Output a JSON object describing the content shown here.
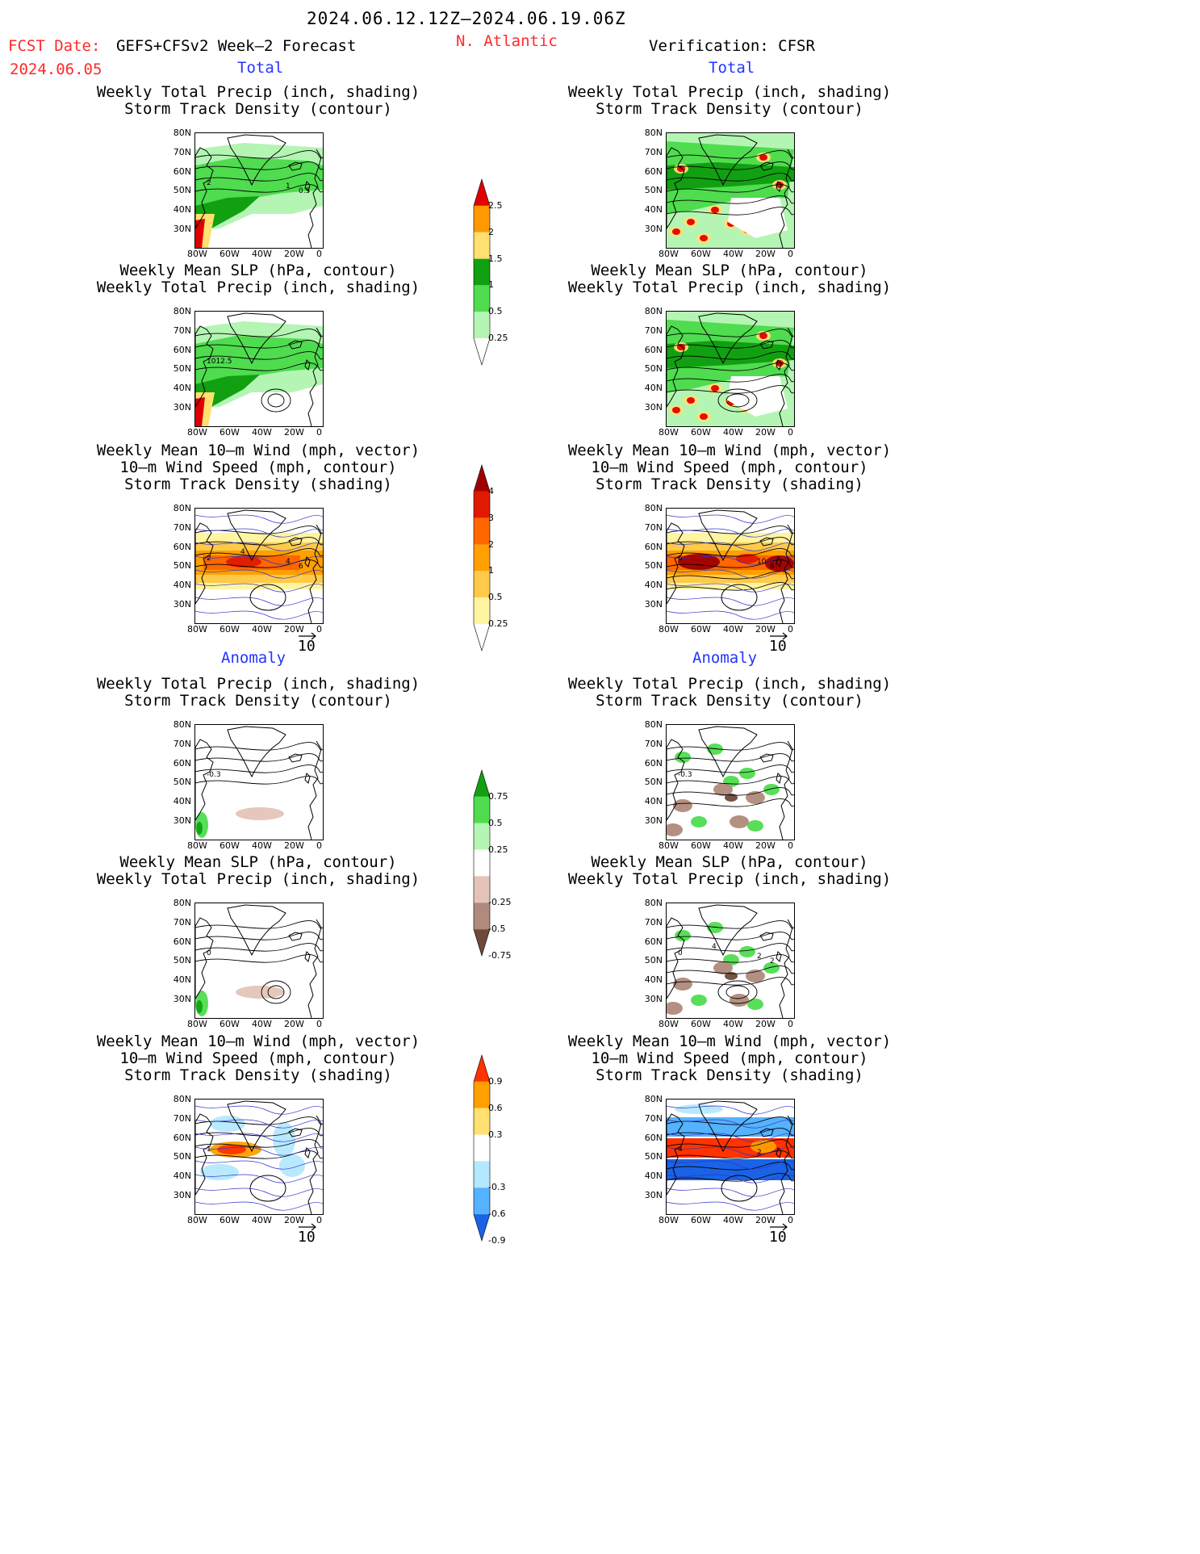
{
  "header": {
    "period": "2024.06.12.12Z–2024.06.19.06Z",
    "fcst_label": "FCST Date:",
    "fcst_model": "GEFS+CFSv2 Week–2 Forecast",
    "fcst_date": "2024.06.05",
    "region": "N. Atlantic",
    "verification": "Verification: CFSR"
  },
  "sections": {
    "total": "Total",
    "anomaly": "Anomaly"
  },
  "panel_titles": {
    "precip_track": [
      "Weekly Total Precip (inch, shading)",
      "Storm Track Density (contour)"
    ],
    "slp_precip": [
      "Weekly Mean SLP (hPa, contour)",
      "Weekly Total Precip (inch, shading)"
    ],
    "wind": [
      "Weekly Mean 10–m Wind (mph, vector)",
      "10–m Wind Speed (mph, contour)",
      "Storm Track Density (shading)"
    ]
  },
  "axes": {
    "lat": [
      "80N",
      "70N",
      "60N",
      "50N",
      "40N",
      "30N"
    ],
    "lon": [
      "80W",
      "60W",
      "40W",
      "20W",
      "0"
    ]
  },
  "vector_ref": "10",
  "contour_labels": {
    "fc_total_precip": [
      "2",
      "1",
      "0.5"
    ],
    "fc_total_slp": [
      "1012.5"
    ],
    "fc_total_wind": [
      "2",
      "4",
      "6",
      "4"
    ],
    "ob_total_wind": [
      "6",
      "10",
      "6"
    ],
    "fc_anom_precip": [
      "-0.3"
    ],
    "ob_anom_precip": [
      "-0.3"
    ],
    "fc_anom_slp": [
      "0"
    ],
    "ob_anom_slp": [
      "0",
      "2",
      "2",
      "4"
    ],
    "fc_anom_wind": [
      "1"
    ],
    "ob_anom_wind": [
      "4",
      "2"
    ]
  },
  "colorbars": {
    "precip_total": [
      "2.5",
      "2",
      "1.5",
      "1",
      "0.5",
      "0.25"
    ],
    "storm_total": [
      "4",
      "3",
      "2",
      "1",
      "0.5",
      "0.25"
    ],
    "precip_anom": [
      "0.75",
      "0.5",
      "0.25",
      "-0.25",
      "-0.5",
      "-0.75"
    ],
    "storm_anom": [
      "0.9",
      "0.6",
      "0.3",
      "-0.3",
      "-0.6",
      "-0.9"
    ]
  },
  "colors": {
    "precip_total": [
      "#e00000",
      "#ff9900",
      "#ffe070",
      "#11a011",
      "#4fdc4f",
      "#b4f5b4"
    ],
    "storm_total": [
      "#a00000",
      "#e01a00",
      "#ff6600",
      "#ff9f00",
      "#ffc94a",
      "#fff4a0"
    ],
    "precip_anom": [
      "#11a011",
      "#4fdc4f",
      "#b4f5b4",
      "#e4c4b8",
      "#b08a7c",
      "#6e4a3c"
    ],
    "storm_anom": [
      "#ff3300",
      "#ff9f00",
      "#ffe070",
      "#b4e8ff",
      "#55b2ff",
      "#1a63e6"
    ]
  }
}
